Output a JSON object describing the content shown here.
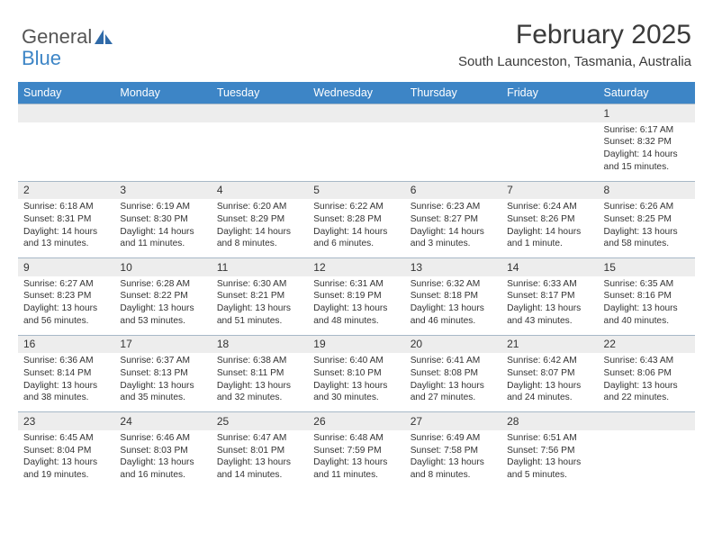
{
  "logo": {
    "text_a": "General",
    "text_b": "Blue"
  },
  "title": "February 2025",
  "location": "South Launceston, Tasmania, Australia",
  "colors": {
    "header_bg": "#3d85c6",
    "header_text": "#ffffff",
    "numrow_bg": "#ededed",
    "numrow_border": "#a7b8c7",
    "text": "#333333",
    "page_bg": "#ffffff"
  },
  "day_names": [
    "Sunday",
    "Monday",
    "Tuesday",
    "Wednesday",
    "Thursday",
    "Friday",
    "Saturday"
  ],
  "weeks": [
    {
      "nums": [
        "",
        "",
        "",
        "",
        "",
        "",
        "1"
      ],
      "cells": [
        null,
        null,
        null,
        null,
        null,
        null,
        {
          "sunrise": "6:17 AM",
          "sunset": "8:32 PM",
          "daylight": "14 hours and 15 minutes."
        }
      ]
    },
    {
      "nums": [
        "2",
        "3",
        "4",
        "5",
        "6",
        "7",
        "8"
      ],
      "cells": [
        {
          "sunrise": "6:18 AM",
          "sunset": "8:31 PM",
          "daylight": "14 hours and 13 minutes."
        },
        {
          "sunrise": "6:19 AM",
          "sunset": "8:30 PM",
          "daylight": "14 hours and 11 minutes."
        },
        {
          "sunrise": "6:20 AM",
          "sunset": "8:29 PM",
          "daylight": "14 hours and 8 minutes."
        },
        {
          "sunrise": "6:22 AM",
          "sunset": "8:28 PM",
          "daylight": "14 hours and 6 minutes."
        },
        {
          "sunrise": "6:23 AM",
          "sunset": "8:27 PM",
          "daylight": "14 hours and 3 minutes."
        },
        {
          "sunrise": "6:24 AM",
          "sunset": "8:26 PM",
          "daylight": "14 hours and 1 minute."
        },
        {
          "sunrise": "6:26 AM",
          "sunset": "8:25 PM",
          "daylight": "13 hours and 58 minutes."
        }
      ]
    },
    {
      "nums": [
        "9",
        "10",
        "11",
        "12",
        "13",
        "14",
        "15"
      ],
      "cells": [
        {
          "sunrise": "6:27 AM",
          "sunset": "8:23 PM",
          "daylight": "13 hours and 56 minutes."
        },
        {
          "sunrise": "6:28 AM",
          "sunset": "8:22 PM",
          "daylight": "13 hours and 53 minutes."
        },
        {
          "sunrise": "6:30 AM",
          "sunset": "8:21 PM",
          "daylight": "13 hours and 51 minutes."
        },
        {
          "sunrise": "6:31 AM",
          "sunset": "8:19 PM",
          "daylight": "13 hours and 48 minutes."
        },
        {
          "sunrise": "6:32 AM",
          "sunset": "8:18 PM",
          "daylight": "13 hours and 46 minutes."
        },
        {
          "sunrise": "6:33 AM",
          "sunset": "8:17 PM",
          "daylight": "13 hours and 43 minutes."
        },
        {
          "sunrise": "6:35 AM",
          "sunset": "8:16 PM",
          "daylight": "13 hours and 40 minutes."
        }
      ]
    },
    {
      "nums": [
        "16",
        "17",
        "18",
        "19",
        "20",
        "21",
        "22"
      ],
      "cells": [
        {
          "sunrise": "6:36 AM",
          "sunset": "8:14 PM",
          "daylight": "13 hours and 38 minutes."
        },
        {
          "sunrise": "6:37 AM",
          "sunset": "8:13 PM",
          "daylight": "13 hours and 35 minutes."
        },
        {
          "sunrise": "6:38 AM",
          "sunset": "8:11 PM",
          "daylight": "13 hours and 32 minutes."
        },
        {
          "sunrise": "6:40 AM",
          "sunset": "8:10 PM",
          "daylight": "13 hours and 30 minutes."
        },
        {
          "sunrise": "6:41 AM",
          "sunset": "8:08 PM",
          "daylight": "13 hours and 27 minutes."
        },
        {
          "sunrise": "6:42 AM",
          "sunset": "8:07 PM",
          "daylight": "13 hours and 24 minutes."
        },
        {
          "sunrise": "6:43 AM",
          "sunset": "8:06 PM",
          "daylight": "13 hours and 22 minutes."
        }
      ]
    },
    {
      "nums": [
        "23",
        "24",
        "25",
        "26",
        "27",
        "28",
        ""
      ],
      "cells": [
        {
          "sunrise": "6:45 AM",
          "sunset": "8:04 PM",
          "daylight": "13 hours and 19 minutes."
        },
        {
          "sunrise": "6:46 AM",
          "sunset": "8:03 PM",
          "daylight": "13 hours and 16 minutes."
        },
        {
          "sunrise": "6:47 AM",
          "sunset": "8:01 PM",
          "daylight": "13 hours and 14 minutes."
        },
        {
          "sunrise": "6:48 AM",
          "sunset": "7:59 PM",
          "daylight": "13 hours and 11 minutes."
        },
        {
          "sunrise": "6:49 AM",
          "sunset": "7:58 PM",
          "daylight": "13 hours and 8 minutes."
        },
        {
          "sunrise": "6:51 AM",
          "sunset": "7:56 PM",
          "daylight": "13 hours and 5 minutes."
        },
        null
      ]
    }
  ],
  "labels": {
    "sunrise": "Sunrise:",
    "sunset": "Sunset:",
    "daylight": "Daylight:"
  }
}
